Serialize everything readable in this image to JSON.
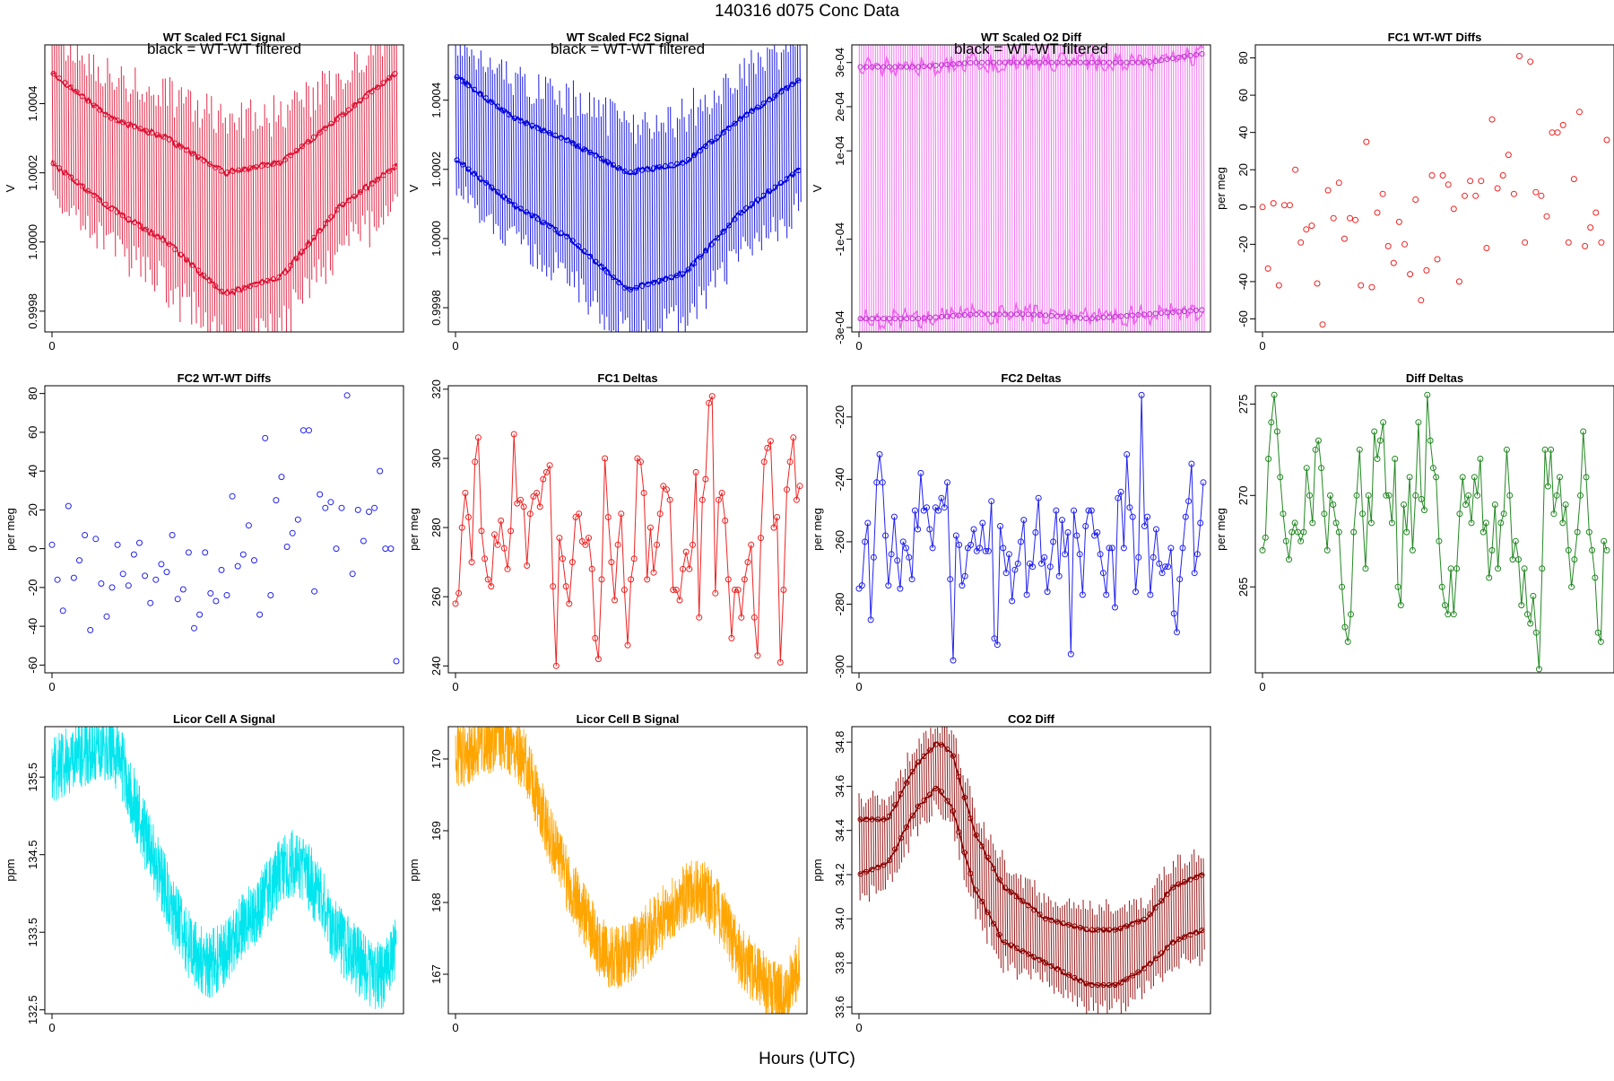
{
  "figure": {
    "title": "140316   d075   Conc Data",
    "xlabel": "Hours (UTC)"
  },
  "chart_data": [
    {
      "id": "p1",
      "type": "line",
      "style": "signal",
      "title": "WT Scaled FC1 Signal",
      "subtitle": "black = WT-WT filtered",
      "ylabel": "V",
      "color": "#dd1133",
      "yticks": [
        0.9998,
        1.0,
        1.0002,
        1.0004
      ],
      "tick_labels": [
        "0.9998",
        "1.0000",
        "1.0002",
        "1.0004"
      ],
      "xticks": [
        "0"
      ],
      "ylim": [
        0.99974,
        1.00057
      ],
      "x": [
        0,
        4,
        8,
        12,
        16,
        20,
        24
      ],
      "upper": [
        1.00049,
        1.00036,
        1.0003,
        1.0002,
        1.00023,
        1.00036,
        1.00049
      ],
      "lower": [
        1.00023,
        1.0001,
        1.0,
        0.99985,
        0.9999,
        1.0001,
        1.00022
      ]
    },
    {
      "id": "p2",
      "type": "line",
      "style": "signal",
      "title": "WT Scaled FC2 Signal",
      "subtitle": "black = WT-WT filtered",
      "ylabel": "V",
      "color": "#0000dd",
      "yticks": [
        0.9998,
        1.0,
        1.0002,
        1.0004
      ],
      "tick_labels": [
        "0.9998",
        "1.0000",
        "1.0002",
        "1.0004"
      ],
      "xticks": [
        "0"
      ],
      "ylim": [
        0.99973,
        1.00056
      ],
      "x": [
        0,
        4,
        8,
        12,
        16,
        20,
        24
      ],
      "upper": [
        1.00047,
        1.00035,
        1.00028,
        1.00019,
        1.00022,
        1.00035,
        1.00046
      ],
      "lower": [
        1.00023,
        1.0001,
        1.0,
        0.99985,
        0.9999,
        1.00008,
        1.0002
      ]
    },
    {
      "id": "p3",
      "type": "line",
      "style": "signal",
      "title": "WT Scaled O2 Diff",
      "subtitle": "black = WT-WT filtered",
      "ylabel": "V",
      "color": "#ee66ee",
      "markcolor": "#bb33cc",
      "yticks": [
        -0.0003,
        -0.0001,
        0.0001,
        0.0002,
        0.0003
      ],
      "tick_labels": [
        "-3e-04",
        "-1e-04",
        "1e-04",
        "2e-04",
        "3e-04"
      ],
      "xticks": [
        "0"
      ],
      "ylim": [
        -0.00031,
        0.00034
      ],
      "x": [
        0,
        4,
        8,
        12,
        16,
        20,
        24
      ],
      "upper": [
        0.00029,
        0.00029,
        0.0003,
        0.0003,
        0.0003,
        0.0003,
        0.00032
      ],
      "lower": [
        -0.00028,
        -0.00028,
        -0.00027,
        -0.00027,
        -0.00028,
        -0.00027,
        -0.00026
      ]
    },
    {
      "id": "p4",
      "type": "scatter",
      "title": "FC1 WT-WT Diffs",
      "ylabel": "per meg",
      "color": "#ee2222",
      "yticks": [
        -60,
        -40,
        -20,
        0,
        20,
        40,
        60,
        80
      ],
      "tick_labels": [
        "-60",
        "-40",
        "-20",
        "0",
        "20",
        "40",
        "60",
        "80"
      ],
      "xticks": [
        "0"
      ],
      "ylim": [
        -67,
        87
      ],
      "xlim": [
        -0.5,
        24.5
      ],
      "values": [
        0,
        -33,
        2,
        -42,
        1,
        1,
        20,
        -19,
        -12,
        -10,
        -41,
        -63,
        9,
        -6,
        13,
        -17,
        -6,
        -7,
        -42,
        35,
        -43,
        -3,
        7,
        -21,
        -30,
        -8,
        -20,
        -36,
        4,
        -50,
        -34,
        17,
        -28,
        17,
        12,
        -1,
        -40,
        6,
        14,
        6,
        14,
        -22,
        47,
        10,
        17,
        28,
        7,
        81,
        -19,
        78,
        8,
        6,
        -5,
        40,
        40,
        44,
        -19,
        15,
        51,
        -21,
        -11,
        -3,
        -19,
        36
      ]
    },
    {
      "id": "p5",
      "type": "scatter",
      "title": "FC2 WT-WT Diffs",
      "ylabel": "per meg",
      "color": "#2222ee",
      "yticks": [
        -60,
        -40,
        -20,
        0,
        20,
        40,
        60,
        80
      ],
      "tick_labels": [
        "-60",
        "-40",
        "-20",
        "0",
        "20",
        "40",
        "60",
        "80"
      ],
      "xticks": [
        "0"
      ],
      "ylim": [
        -64,
        84
      ],
      "xlim": [
        -0.5,
        24.5
      ],
      "values": [
        2,
        -16,
        -32,
        22,
        -15,
        -6,
        7,
        -42,
        5,
        -18,
        -35,
        -20,
        2,
        -13,
        -19,
        -3,
        3,
        -14,
        -28,
        -16,
        -8,
        -12,
        7,
        -26,
        -21,
        -2,
        -41,
        -34,
        -2,
        -23,
        -27,
        -11,
        -24,
        27,
        -9,
        -3,
        12,
        -6,
        -34,
        57,
        -24,
        25,
        37,
        1,
        8,
        15,
        61,
        61,
        -22,
        28,
        21,
        24,
        0,
        21,
        79,
        -13,
        20,
        4,
        19,
        21,
        40,
        0,
        0,
        -58
      ]
    },
    {
      "id": "p6",
      "type": "line",
      "style": "points",
      "title": "FC1 Deltas",
      "ylabel": "per meg",
      "color": "#ee2222",
      "yticks": [
        240,
        260,
        280,
        300,
        320
      ],
      "tick_labels": [
        "240",
        "260",
        "280",
        "300",
        "320"
      ],
      "xticks": [
        "0"
      ],
      "ylim": [
        238,
        321
      ],
      "xlim": [
        -0.5,
        24.5
      ],
      "values": [
        258,
        261,
        280,
        290,
        283,
        270,
        299,
        306,
        279,
        271,
        265,
        263,
        278,
        275,
        282,
        274,
        268,
        279,
        307,
        287,
        288,
        286,
        269,
        284,
        289,
        290,
        286,
        294,
        296,
        298,
        263,
        240,
        277,
        271,
        263,
        258,
        270,
        283,
        284,
        276,
        275,
        277,
        268,
        248,
        242,
        265,
        300,
        283,
        270,
        259,
        275,
        284,
        262,
        246,
        265,
        271,
        300,
        299,
        290,
        265,
        280,
        267,
        275,
        284,
        292,
        291,
        288,
        262,
        262,
        259,
        268,
        273,
        268,
        275,
        296,
        254,
        288,
        294,
        316,
        318,
        261,
        288,
        290,
        282,
        265,
        248,
        262,
        262,
        254,
        265,
        270,
        275,
        254,
        243,
        277,
        299,
        303,
        305,
        280,
        283,
        241,
        262,
        291,
        299,
        306,
        288,
        292
      ]
    },
    {
      "id": "p7",
      "type": "line",
      "style": "points",
      "title": "FC2 Deltas",
      "ylabel": "per meg",
      "color": "#2222ee",
      "yticks": [
        -300,
        -280,
        -260,
        -240,
        -220
      ],
      "tick_labels": [
        "-300",
        "-280",
        "-260",
        "-240",
        "-220"
      ],
      "xticks": [
        "0"
      ],
      "ylim": [
        -302,
        -210
      ],
      "xlim": [
        -0.5,
        24.5
      ],
      "values": [
        -275,
        -274,
        -260,
        -254,
        -285,
        -265,
        -241,
        -232,
        -241,
        -258,
        -274,
        -264,
        -252,
        -266,
        -275,
        -260,
        -262,
        -265,
        -272,
        -250,
        -256,
        -238,
        -250,
        -249,
        -256,
        -262,
        -249,
        -250,
        -246,
        -249,
        -241,
        -272,
        -298,
        -258,
        -261,
        -274,
        -271,
        -262,
        -261,
        -256,
        -263,
        -262,
        -254,
        -263,
        -263,
        -247,
        -291,
        -293,
        -255,
        -262,
        -270,
        -264,
        -279,
        -269,
        -267,
        -260,
        -253,
        -277,
        -267,
        -268,
        -257,
        -246,
        -267,
        -265,
        -276,
        -268,
        -260,
        -250,
        -271,
        -253,
        -264,
        -257,
        -296,
        -250,
        -258,
        -264,
        -277,
        -255,
        -250,
        -250,
        -258,
        -257,
        -264,
        -270,
        -277,
        -262,
        -262,
        -281,
        -246,
        -244,
        -262,
        -232,
        -249,
        -252,
        -276,
        -265,
        -213,
        -255,
        -252,
        -277,
        -265,
        -256,
        -267,
        -270,
        -268,
        -268,
        -262,
        -283,
        -289,
        -272,
        -262,
        -252,
        -247,
        -235,
        -270,
        -264,
        -254,
        -241
      ]
    },
    {
      "id": "p8",
      "type": "line",
      "style": "points",
      "title": "Diff Deltas",
      "ylabel": "per meg",
      "color": "#228822",
      "yticks": [
        265,
        270,
        275
      ],
      "tick_labels": [
        "265",
        "270",
        "275"
      ],
      "xticks": [
        "0"
      ],
      "ylim": [
        260.3,
        276.0
      ],
      "xlim": [
        -0.5,
        24.5
      ],
      "values": [
        267,
        267.7,
        272,
        274,
        275.5,
        273.5,
        271,
        269,
        267.5,
        266.5,
        268,
        268.5,
        268,
        267.5,
        268,
        271.5,
        270,
        268.5,
        272.5,
        273,
        271.5,
        269,
        267,
        270,
        269.5,
        268.5,
        268,
        265,
        262.8,
        262,
        263.5,
        268,
        270,
        272.5,
        269,
        266,
        270,
        268.5,
        273.5,
        272,
        273,
        274,
        270,
        270,
        268.5,
        272,
        265,
        264,
        269.5,
        268,
        271,
        267,
        270,
        274,
        269.8,
        269.2,
        275.5,
        273,
        271.5,
        271,
        267.5,
        265,
        264,
        263.5,
        266,
        263.5,
        266,
        269,
        271,
        269.5,
        270,
        268.5,
        271,
        270,
        272,
        268,
        268.5,
        265.5,
        267,
        269.5,
        266,
        268.5,
        269,
        272.5,
        270,
        266.5,
        267.5,
        266.5,
        264,
        266,
        263.5,
        263,
        264.5,
        262.5,
        260.5,
        266,
        272.5,
        270.5,
        272.5,
        269,
        270,
        271,
        268.5,
        269.5,
        267,
        265,
        266.5,
        268,
        270,
        273.5,
        271,
        268,
        267,
        265.5,
        262.5,
        262,
        267.5,
        267
      ]
    },
    {
      "id": "p9",
      "type": "line",
      "style": "noise",
      "title": "Licor Cell A Signal",
      "ylabel": "ppm",
      "color": "#00e5ee",
      "yticks": [
        132.5,
        133.5,
        134.5,
        135.5
      ],
      "tick_labels": [
        "132.5",
        "133.5",
        "134.5",
        "135.5"
      ],
      "xticks": [
        "0"
      ],
      "ylim": [
        132.45,
        136.15
      ],
      "xlim": [
        -0.5,
        24.5
      ],
      "trend_x": [
        0,
        1,
        2,
        3,
        4,
        5,
        6,
        7,
        8,
        9,
        10,
        11,
        12,
        13,
        14,
        15,
        16,
        17,
        18,
        19,
        20,
        21,
        22,
        23,
        24
      ],
      "trend_y": [
        135.6,
        135.7,
        135.8,
        135.9,
        135.9,
        135.6,
        135.0,
        134.5,
        134.0,
        133.5,
        133.2,
        133.1,
        133.2,
        133.5,
        133.7,
        134.0,
        134.3,
        134.4,
        134.2,
        133.8,
        133.4,
        133.2,
        133.0,
        132.9,
        133.3
      ],
      "noise_amp": 0.45
    },
    {
      "id": "p10",
      "type": "line",
      "style": "noise",
      "title": "Licor Cell B Signal",
      "ylabel": "ppm",
      "color": "#ffa500",
      "yticks": [
        167,
        168,
        169,
        170
      ],
      "tick_labels": [
        "167",
        "168",
        "169",
        "170"
      ],
      "xticks": [
        "0"
      ],
      "ylim": [
        166.45,
        170.45
      ],
      "xlim": [
        -0.5,
        24.5
      ],
      "trend_x": [
        0,
        1,
        2,
        3,
        4,
        5,
        6,
        7,
        8,
        9,
        10,
        11,
        12,
        13,
        14,
        15,
        16,
        17,
        18,
        19,
        20,
        21,
        22,
        23,
        24
      ],
      "trend_y": [
        170.0,
        170.1,
        170.2,
        170.3,
        170.2,
        169.9,
        169.3,
        168.7,
        168.2,
        167.8,
        167.4,
        167.2,
        167.3,
        167.5,
        167.7,
        167.9,
        168.1,
        168.2,
        168.0,
        167.6,
        167.2,
        167.0,
        166.8,
        166.7,
        167.1
      ],
      "noise_amp": 0.45
    },
    {
      "id": "p11",
      "type": "line",
      "style": "signal",
      "title": "CO2 Diff",
      "ylabel": "ppm",
      "color": "#8b0000",
      "yticks": [
        33.6,
        33.8,
        34.0,
        34.2,
        34.4,
        34.6,
        34.8
      ],
      "tick_labels": [
        "33.6",
        "33.8",
        "34.0",
        "34.2",
        "34.4",
        "34.6",
        "34.8"
      ],
      "xticks": [
        "0"
      ],
      "ylim": [
        33.57,
        34.87
      ],
      "x": [
        0,
        2,
        4,
        5.5,
        6.5,
        8,
        10,
        13,
        16,
        18,
        20,
        22,
        24
      ],
      "upper": [
        34.45,
        34.45,
        34.7,
        34.8,
        34.75,
        34.4,
        34.15,
        34.0,
        33.95,
        33.95,
        34.0,
        34.15,
        34.2
      ],
      "lower": [
        34.2,
        34.25,
        34.5,
        34.6,
        34.5,
        34.15,
        33.9,
        33.8,
        33.7,
        33.7,
        33.78,
        33.9,
        33.95
      ]
    }
  ]
}
